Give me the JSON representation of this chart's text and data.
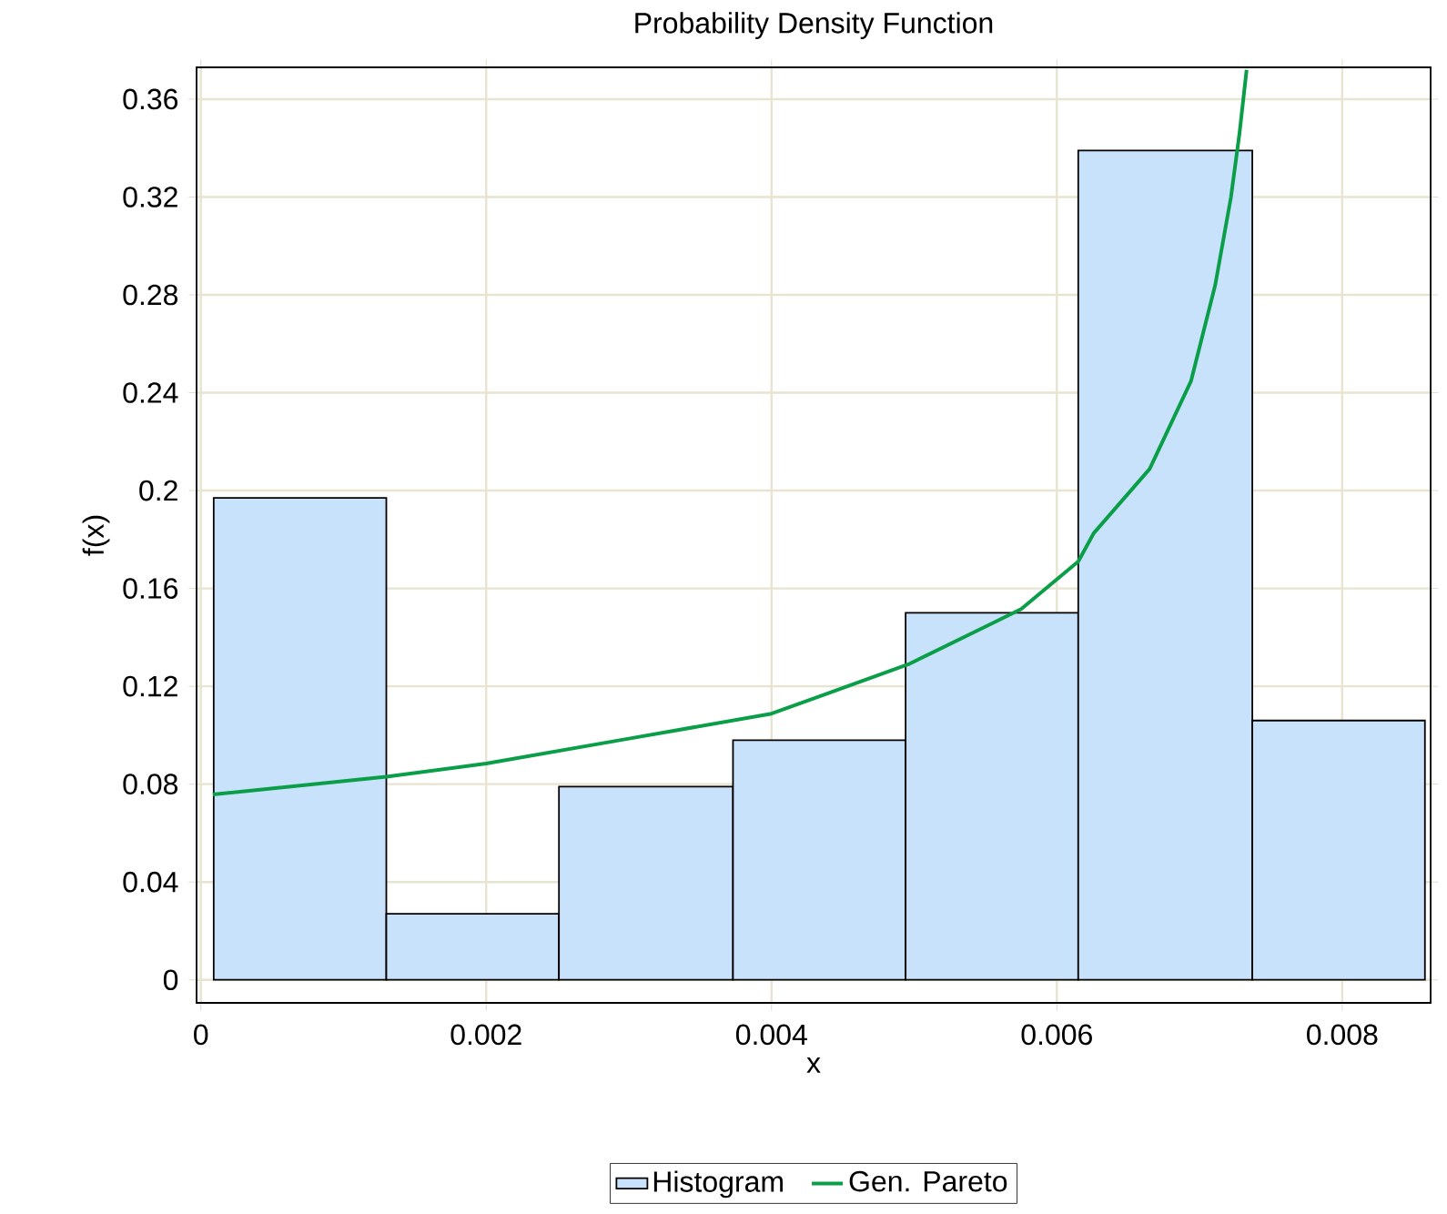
{
  "chart_data": {
    "type": "histogram",
    "title": "Probability Density Function",
    "xlabel": "x",
    "ylabel": "f(x)",
    "bins": [
      9e-05,
      0.0013,
      0.00251,
      0.00373,
      0.00494,
      0.00615,
      0.00737,
      0.00858
    ],
    "series": [
      {
        "name": "Histogram",
        "color": "#c9e2fb",
        "values": [
          0.197,
          0.027,
          0.079,
          0.098,
          0.15,
          0.339,
          0.106
        ]
      },
      {
        "name": "Gen. Pareto",
        "type": "line",
        "color": "#0a9e48",
        "x": [
          8.4e-05,
          0.0013,
          0.002,
          0.003,
          0.004,
          0.00496,
          0.00552,
          0.00575,
          0.00615,
          0.00626,
          0.00665,
          0.00694,
          0.00711,
          0.00722,
          0.00728,
          0.00733
        ],
        "values": [
          0.0758,
          0.083,
          0.0884,
          0.0986,
          0.1088,
          0.129,
          0.145,
          0.1516,
          0.171,
          0.1827,
          0.2088,
          0.2447,
          0.284,
          0.3198,
          0.3459,
          0.372
        ]
      }
    ],
    "xlim": [
      -3e-05,
      0.00862
    ],
    "ylim": [
      -0.0094,
      0.373
    ],
    "xticks": [
      0,
      0.002,
      0.004,
      0.006,
      0.008
    ],
    "yticks": [
      0,
      0.04,
      0.08,
      0.12,
      0.16,
      0.2,
      0.24,
      0.28,
      0.32,
      0.36
    ],
    "grid": true,
    "legend": "bottom",
    "marker": "none",
    "line_style": "solid"
  }
}
